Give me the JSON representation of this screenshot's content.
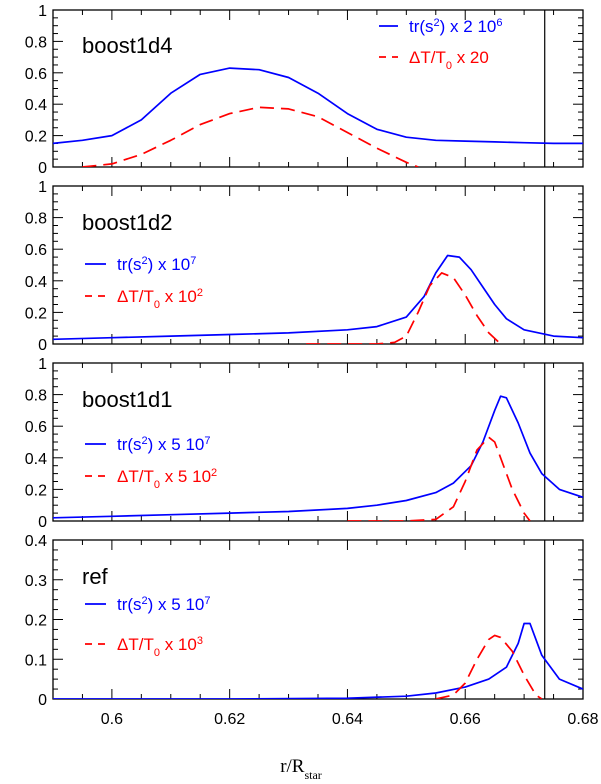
{
  "chart_data": [
    {
      "type": "line",
      "panel_label": "boost1d4",
      "xlim": [
        0.59,
        0.68
      ],
      "ylim": [
        0,
        1
      ],
      "y_ticks": [
        "0",
        "0.2",
        "0.4",
        "0.6",
        "0.8",
        "1"
      ],
      "vline_x": 0.6735,
      "legend_placement": "top-right",
      "series": [
        {
          "name": "tr(s²) x 2 10⁶",
          "color": "#0000ff",
          "dash": "solid",
          "x": [
            0.59,
            0.595,
            0.6,
            0.605,
            0.61,
            0.615,
            0.62,
            0.625,
            0.63,
            0.635,
            0.64,
            0.645,
            0.65,
            0.655,
            0.66,
            0.665,
            0.67,
            0.675,
            0.68
          ],
          "y": [
            0.15,
            0.17,
            0.2,
            0.3,
            0.47,
            0.59,
            0.63,
            0.62,
            0.57,
            0.47,
            0.34,
            0.24,
            0.19,
            0.17,
            0.165,
            0.16,
            0.155,
            0.15,
            0.15
          ]
        },
        {
          "name": "ΔT/T₀ x 20",
          "color": "#ff0000",
          "dash": "dashed",
          "x": [
            0.595,
            0.6,
            0.605,
            0.61,
            0.615,
            0.62,
            0.625,
            0.63,
            0.635,
            0.64,
            0.645,
            0.65,
            0.652
          ],
          "y": [
            0.0,
            0.02,
            0.08,
            0.17,
            0.27,
            0.34,
            0.38,
            0.37,
            0.32,
            0.22,
            0.12,
            0.03,
            0.0
          ]
        }
      ]
    },
    {
      "type": "line",
      "panel_label": "boost1d2",
      "xlim": [
        0.59,
        0.68
      ],
      "ylim": [
        0,
        1
      ],
      "y_ticks": [
        "0",
        "0.2",
        "0.4",
        "0.6",
        "0.8",
        "1"
      ],
      "vline_x": 0.6735,
      "legend_placement": "left",
      "series": [
        {
          "name": "tr(s²) x 10⁷",
          "color": "#0000ff",
          "dash": "solid",
          "x": [
            0.59,
            0.6,
            0.61,
            0.62,
            0.63,
            0.64,
            0.645,
            0.65,
            0.653,
            0.655,
            0.657,
            0.659,
            0.661,
            0.663,
            0.665,
            0.667,
            0.67,
            0.675,
            0.68
          ],
          "y": [
            0.03,
            0.04,
            0.05,
            0.06,
            0.07,
            0.09,
            0.11,
            0.17,
            0.3,
            0.45,
            0.56,
            0.55,
            0.47,
            0.36,
            0.25,
            0.16,
            0.09,
            0.05,
            0.04
          ]
        },
        {
          "name": "ΔT/T₀ x 10²",
          "color": "#ff0000",
          "dash": "dashed",
          "x": [
            0.633,
            0.64,
            0.645,
            0.648,
            0.65,
            0.652,
            0.654,
            0.656,
            0.658,
            0.66,
            0.662,
            0.664,
            0.666
          ],
          "y": [
            0.0,
            0.0,
            0.0,
            0.01,
            0.05,
            0.2,
            0.37,
            0.45,
            0.42,
            0.31,
            0.18,
            0.07,
            0.0
          ]
        }
      ]
    },
    {
      "type": "line",
      "panel_label": "boost1d1",
      "xlim": [
        0.59,
        0.68
      ],
      "ylim": [
        0,
        1
      ],
      "y_ticks": [
        "0",
        "0.2",
        "0.4",
        "0.6",
        "0.8",
        "1"
      ],
      "vline_x": 0.6735,
      "legend_placement": "left",
      "series": [
        {
          "name": "tr(s²) x 5 10⁷",
          "color": "#0000ff",
          "dash": "solid",
          "x": [
            0.59,
            0.6,
            0.61,
            0.62,
            0.63,
            0.64,
            0.645,
            0.65,
            0.655,
            0.658,
            0.661,
            0.663,
            0.665,
            0.666,
            0.667,
            0.669,
            0.671,
            0.673,
            0.676,
            0.68
          ],
          "y": [
            0.02,
            0.03,
            0.04,
            0.05,
            0.06,
            0.08,
            0.1,
            0.13,
            0.18,
            0.24,
            0.35,
            0.5,
            0.7,
            0.79,
            0.78,
            0.62,
            0.43,
            0.3,
            0.2,
            0.15
          ]
        },
        {
          "name": "ΔT/T₀ x 5 10²",
          "color": "#ff0000",
          "dash": "dashed",
          "x": [
            0.64,
            0.65,
            0.655,
            0.658,
            0.66,
            0.662,
            0.664,
            0.665,
            0.666,
            0.668,
            0.67,
            0.671
          ],
          "y": [
            0.0,
            0.0,
            0.01,
            0.09,
            0.25,
            0.45,
            0.53,
            0.5,
            0.4,
            0.2,
            0.05,
            0.0
          ]
        }
      ]
    },
    {
      "type": "line",
      "panel_label": "ref",
      "xlim": [
        0.59,
        0.68
      ],
      "ylim": [
        0,
        0.4
      ],
      "y_ticks": [
        "0",
        "0.1",
        "0.2",
        "0.3",
        "0.4"
      ],
      "x_ticks": [
        "0.6",
        "0.62",
        "0.64",
        "0.66",
        "0.68"
      ],
      "xlabel": "r/R",
      "xlabel_subscript": "star",
      "vline_x": 0.6735,
      "legend_placement": "left",
      "series": [
        {
          "name": "tr(s²) x 5 10⁷",
          "color": "#0000ff",
          "dash": "solid",
          "x": [
            0.59,
            0.62,
            0.64,
            0.65,
            0.655,
            0.66,
            0.664,
            0.667,
            0.669,
            0.67,
            0.671,
            0.673,
            0.676,
            0.68
          ],
          "y": [
            0.0,
            0.0,
            0.002,
            0.007,
            0.015,
            0.03,
            0.05,
            0.08,
            0.14,
            0.19,
            0.19,
            0.11,
            0.05,
            0.025
          ]
        },
        {
          "name": "ΔT/T₀ x 10³",
          "color": "#ff0000",
          "dash": "dashed",
          "x": [
            0.655,
            0.658,
            0.66,
            0.662,
            0.664,
            0.665,
            0.666,
            0.668,
            0.67,
            0.672,
            0.673
          ],
          "y": [
            0.0,
            0.01,
            0.04,
            0.1,
            0.15,
            0.16,
            0.155,
            0.12,
            0.06,
            0.01,
            0.0
          ]
        }
      ]
    }
  ]
}
